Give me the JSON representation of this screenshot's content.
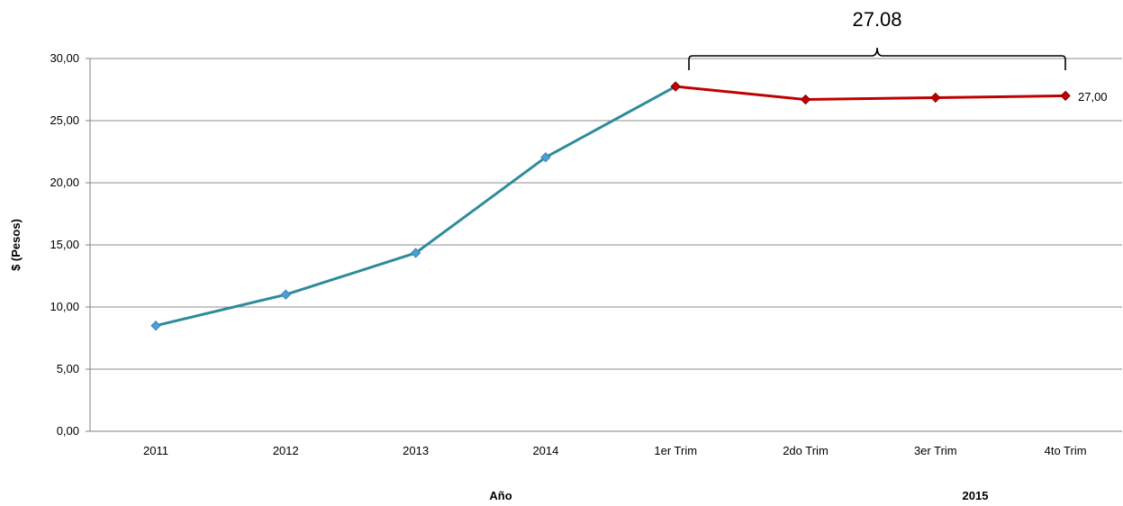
{
  "chart_data": {
    "type": "line",
    "title": "",
    "xlabel": "Año",
    "ylabel": "$ (Pesos)",
    "ylim": [
      0,
      30
    ],
    "yticks": [
      "0,00",
      "5,00",
      "10,00",
      "15,00",
      "20,00",
      "25,00",
      "30,00"
    ],
    "grid": "horizontal",
    "categories": [
      "2011",
      "2012",
      "2013",
      "2014",
      "1er Trim",
      "2do Trim",
      "3er Trim",
      "4to Trim"
    ],
    "series": [
      {
        "values": [
          8.5,
          11.0,
          14.35,
          22.05,
          27.75,
          null,
          null,
          null
        ],
        "color": "#2e8b9a",
        "marker_color": "#4a9fd4"
      },
      {
        "values": [
          null,
          null,
          null,
          null,
          27.75,
          26.7,
          26.85,
          27.0
        ],
        "color": "#c00000",
        "marker_color": "#c00000"
      }
    ],
    "group_label": "2015",
    "bracket_annotation": "27.08",
    "end_value_label": "27,00"
  }
}
